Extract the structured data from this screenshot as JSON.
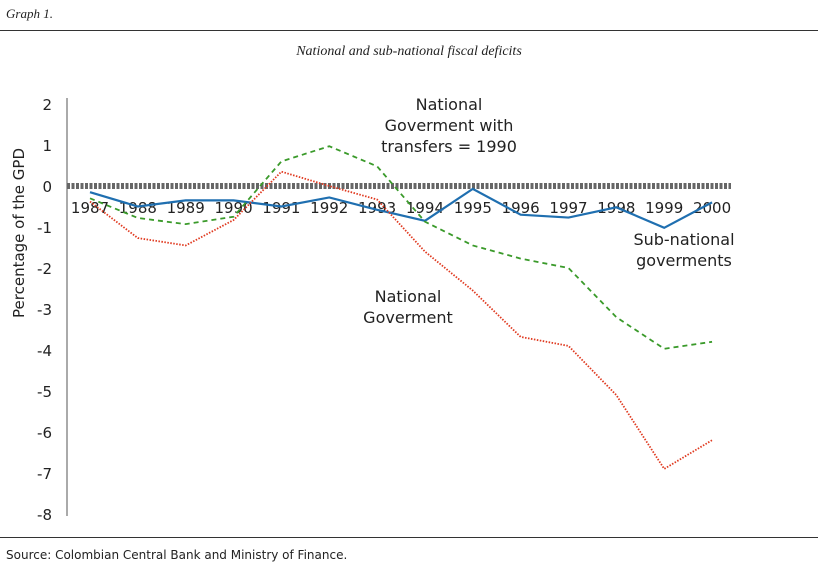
{
  "header": {
    "graph_label": "Graph 1.",
    "source": "Source: Colombian Central Bank and Ministry of Finance."
  },
  "chart_data": {
    "type": "line",
    "title": "National and sub-national fiscal deficits",
    "ylabel": "Percentage of the GPD",
    "xlabel": "",
    "ylim": [
      -8,
      2
    ],
    "yticks": [
      2,
      1,
      0,
      -1,
      -2,
      -3,
      -4,
      -5,
      -6,
      -7,
      -8
    ],
    "categories": [
      "1987",
      "1988",
      "1989",
      "1990",
      "1991",
      "1992",
      "1993",
      "1994",
      "1995",
      "1996",
      "1997",
      "1998",
      "1999",
      "2000"
    ],
    "series": [
      {
        "name": "Sub-national goverments",
        "label_lines": [
          "Sub-national",
          "goverments"
        ],
        "color": "#1f6fb0",
        "style": "solid",
        "values": [
          -0.15,
          -0.5,
          -0.35,
          -0.35,
          -0.5,
          -0.28,
          -0.58,
          -0.85,
          -0.07,
          -0.7,
          -0.77,
          -0.52,
          -1.02,
          -0.4
        ]
      },
      {
        "name": "National Goverment with transfers = 1990",
        "label_lines": [
          "National",
          "Goverment with",
          "transfers = 1990"
        ],
        "color": "#3a9a2a",
        "style": "dashed",
        "values": [
          -0.3,
          -0.78,
          -0.93,
          -0.75,
          0.6,
          0.97,
          0.48,
          -0.87,
          -1.45,
          -1.77,
          -2.0,
          -3.2,
          -3.97,
          -3.8
        ]
      },
      {
        "name": "National Goverment",
        "label_lines": [
          "National",
          "Goverment"
        ],
        "color": "#e03a20",
        "style": "dotted",
        "values": [
          -0.38,
          -1.27,
          -1.45,
          -0.83,
          0.35,
          0.0,
          -0.33,
          -1.6,
          -2.55,
          -3.68,
          -3.9,
          -5.1,
          -6.9,
          -6.2
        ]
      }
    ],
    "grid": false,
    "legend": "inline labels"
  }
}
